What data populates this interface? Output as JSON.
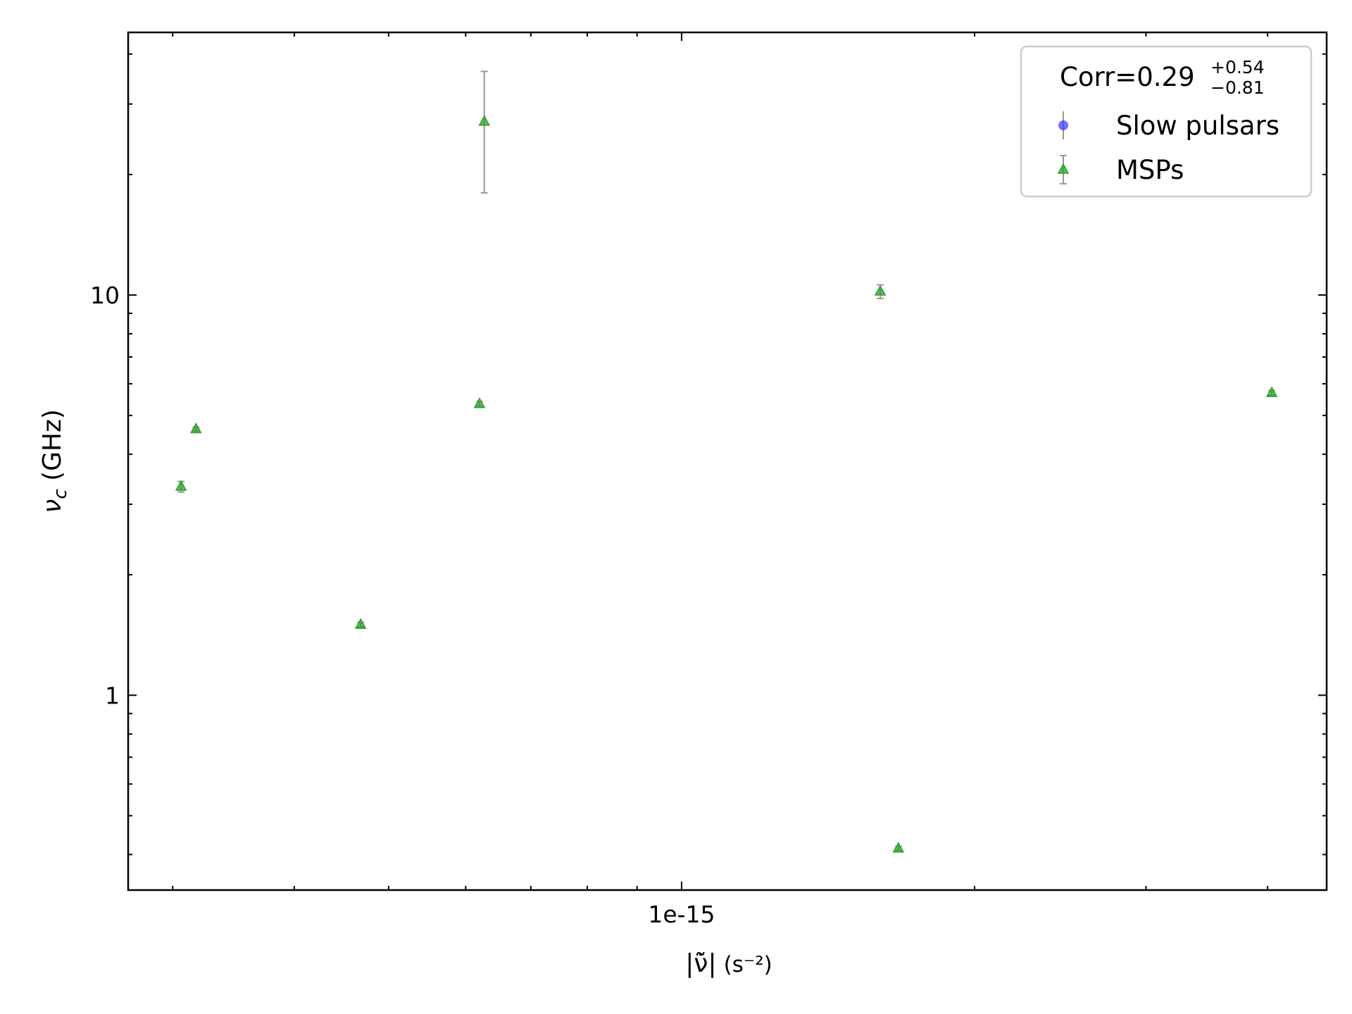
{
  "chart_data": {
    "type": "scatter",
    "xlabel": {
      "symbol": "|ν̃̇|",
      "unit": "(s⁻²)"
    },
    "ylabel": {
      "symbol": "ν",
      "subscript": "c",
      "unit": " (GHz)"
    },
    "xscale": "log",
    "yscale": "log",
    "xlim": [
      2.7e-16,
      4.6e-15
    ],
    "ylim": [
      0.326,
      45.3
    ],
    "xticks": [
      {
        "value": 1e-15,
        "label": "1e-15"
      }
    ],
    "yticks": [
      1,
      10
    ],
    "xminor": [
      3e-16,
      4e-16,
      5e-16,
      6e-16,
      7e-16,
      8e-16,
      9e-16,
      2e-15,
      3e-15,
      4e-15
    ],
    "yminor": [
      0.4,
      0.5,
      0.6,
      0.7,
      0.8,
      0.9,
      2,
      3,
      4,
      5,
      6,
      7,
      8,
      9,
      20,
      30,
      40
    ],
    "legend": {
      "title": "Corr=0.29",
      "title_upper": "+0.54",
      "title_lower": "−0.81",
      "loc": "upper right"
    },
    "errorbar_color": "#999999",
    "series": [
      {
        "name": "Slow pulsars",
        "color": "#3333ff",
        "marker": "circle",
        "x": [],
        "values": [],
        "errors": []
      },
      {
        "name": "MSPs",
        "color": "#2ca02c",
        "marker": "triangle",
        "x": [
          3.06e-16,
          3.17e-16,
          4.68e-16,
          6.2e-16,
          6.27e-16,
          1.6e-15,
          1.67e-15,
          4.04e-15
        ],
        "values": [
          3.32,
          4.62,
          1.5,
          5.34,
          27.1,
          10.2,
          0.414,
          5.69
        ],
        "errors": [
          0.1,
          0.05,
          0.02,
          0.08,
          9.1,
          0.4,
          0.005,
          0.08
        ]
      }
    ]
  }
}
